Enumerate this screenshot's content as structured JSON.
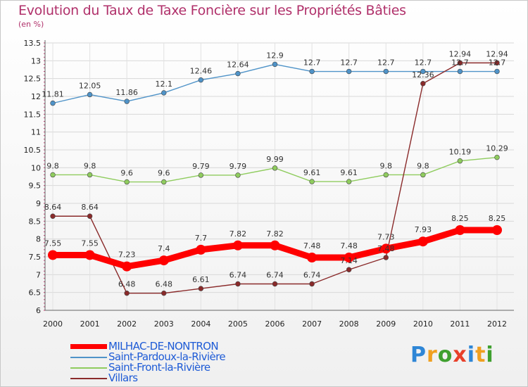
{
  "chart_data": {
    "type": "line",
    "title": "Evolution du Taux de Taxe Foncière sur les Propriétés Bâties",
    "ylabel": "(en %)",
    "xlabel": "",
    "x": [
      "2000",
      "2001",
      "2002",
      "2003",
      "2004",
      "2005",
      "2006",
      "2007",
      "2008",
      "2009",
      "2010",
      "2011",
      "2012"
    ],
    "ylim": [
      6,
      13.5
    ],
    "yticks": [
      "6",
      "6.5",
      "7",
      "7.5",
      "8",
      "8.5",
      "9",
      "9.5",
      "10",
      "10.5",
      "11",
      "11.5",
      "12",
      "12.5",
      "13",
      "13.5"
    ],
    "series": [
      {
        "name": "MILHAC-DE-NONTRON",
        "color": "#ff0000",
        "values": [
          7.55,
          7.55,
          7.23,
          7.4,
          7.7,
          7.82,
          7.82,
          7.48,
          7.48,
          7.73,
          7.93,
          8.25,
          8.25
        ],
        "labels": [
          "7.55",
          "7.55",
          "7.23",
          "7.4",
          "7.7",
          "7.82",
          "7.82",
          "7.48",
          "7.48",
          "7.73",
          "7.93",
          "8.25",
          "8.25"
        ]
      },
      {
        "name": "Saint-Pardoux-la-Rivière",
        "color": "#4f93c8",
        "values": [
          11.81,
          12.05,
          11.86,
          12.1,
          12.46,
          12.64,
          12.9,
          12.7,
          12.7,
          12.7,
          12.7,
          12.7,
          12.7
        ],
        "labels": [
          "11.81",
          "12.05",
          "11.86",
          "12.1",
          "12.46",
          "12.64",
          "12.9",
          "12.7",
          "12.7",
          "12.7",
          "12.7",
          "12.7",
          "12.7"
        ]
      },
      {
        "name": "Saint-Front-la-Rivière",
        "color": "#8fcc5e",
        "values": [
          9.8,
          9.8,
          9.6,
          9.6,
          9.79,
          9.79,
          9.99,
          9.61,
          9.61,
          9.8,
          9.8,
          10.19,
          10.29
        ],
        "labels": [
          "9.8",
          "9.8",
          "9.6",
          "9.6",
          "9.79",
          "9.79",
          "9.99",
          "9.61",
          "9.61",
          "9.8",
          "9.8",
          "10.19",
          "10.29"
        ]
      },
      {
        "name": "Villars",
        "color": "#8a2a2a",
        "values": [
          8.64,
          8.64,
          6.48,
          6.48,
          6.61,
          6.74,
          6.74,
          6.74,
          7.14,
          7.48,
          12.36,
          12.94,
          12.94
        ],
        "labels": [
          "8.64",
          "8.64",
          "6.48",
          "6.48",
          "6.61",
          "6.74",
          "6.74",
          "6.74",
          "7.14",
          "7.48",
          "12.36",
          "12.94",
          "12.94"
        ]
      }
    ]
  },
  "legend": {
    "items": [
      "MILHAC-DE-NONTRON",
      "Saint-Pardoux-la-Rivière",
      "Saint-Front-la-Rivière",
      "Villars"
    ]
  },
  "logo": {
    "text": "Proxiti",
    "letters": [
      "P",
      "r",
      "o",
      "x",
      "i",
      "t",
      "i"
    ],
    "colors": [
      "#2e86d6",
      "#f0a020",
      "#3fa02f",
      "#e8402a",
      "#2e86d6",
      "#f0a020",
      "#3fa02f"
    ]
  }
}
